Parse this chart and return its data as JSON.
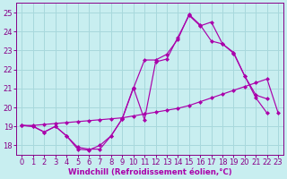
{
  "background_color": "#c8eef0",
  "grid_color": "#a8d8dc",
  "line_color": "#aa00aa",
  "marker_color": "#aa00aa",
  "xlabel": "Windchill (Refroidissement éolien,°C)",
  "xlabel_color": "#aa00aa",
  "tick_color": "#880088",
  "ylim": [
    17.5,
    25.5
  ],
  "xlim": [
    -0.5,
    23.5
  ],
  "yticks": [
    18,
    19,
    20,
    21,
    22,
    23,
    24,
    25
  ],
  "xticks": [
    0,
    1,
    2,
    3,
    4,
    5,
    6,
    7,
    8,
    9,
    10,
    11,
    12,
    13,
    14,
    15,
    16,
    17,
    18,
    19,
    20,
    21,
    22,
    23
  ],
  "line1_x": [
    0,
    1,
    2,
    3,
    4,
    5,
    6,
    7,
    8,
    9,
    10,
    11,
    12,
    13,
    14,
    15,
    16,
    17,
    18,
    19,
    20,
    21,
    22,
    23
  ],
  "line1_y": [
    19.05,
    19.05,
    19.1,
    19.15,
    19.2,
    19.25,
    19.3,
    19.35,
    19.4,
    19.45,
    19.55,
    19.65,
    19.75,
    19.85,
    19.95,
    20.1,
    20.3,
    20.5,
    20.7,
    20.9,
    21.1,
    21.3,
    21.5,
    19.7
  ],
  "line2_x": [
    0,
    1,
    2,
    3,
    4,
    5,
    6,
    7,
    8,
    9,
    10,
    11,
    12,
    13,
    14,
    15,
    16,
    17,
    18,
    19,
    20,
    21,
    22
  ],
  "line2_y": [
    19.05,
    19.0,
    18.7,
    19.0,
    18.5,
    17.9,
    17.8,
    17.8,
    18.5,
    19.4,
    21.0,
    22.5,
    22.5,
    22.8,
    23.6,
    24.9,
    24.35,
    23.5,
    23.35,
    22.9,
    21.65,
    20.5,
    19.7
  ],
  "line3_x": [
    0,
    1,
    2,
    3,
    4,
    5,
    6,
    7,
    8,
    9,
    10,
    11,
    12,
    13,
    14,
    15,
    16,
    17,
    18,
    19,
    20,
    21,
    22
  ],
  "line3_y": [
    19.05,
    19.0,
    18.7,
    19.0,
    18.5,
    17.8,
    17.75,
    18.0,
    18.5,
    19.4,
    21.05,
    19.35,
    22.4,
    22.55,
    23.7,
    24.85,
    24.3,
    24.5,
    23.35,
    22.85,
    21.65,
    20.65,
    20.45
  ]
}
